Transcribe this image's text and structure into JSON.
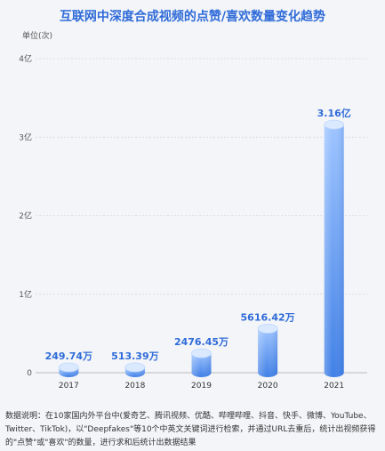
{
  "title": "互联网中深度合成视频的点赞/喜欢数量变化趋势",
  "footnote": "数据说明：在10家国内外平台中(爱奇艺、腾讯视频、优酷、哔哩哔哩、抖音、快手、微博、YouTube、Twitter、TikTok)，以\"Deepfakes\"等10个中英文关键词进行检索，并通过URL去重后，统计出视频获得的\"点赞\"或\"喜欢\"的数量，进行求和后统计出数据结果",
  "colors": {
    "title": "#2f6bd8",
    "bar_top": "#e6f0ff",
    "bar_light": "#a9ccff",
    "bar_dark": "#3f7fe6",
    "label": "#2f6bd8"
  },
  "chart_data": {
    "type": "bar",
    "categories": [
      "2017",
      "2018",
      "2019",
      "2020",
      "2021"
    ],
    "values": [
      2497400,
      5133900,
      24764500,
      56164200,
      316000000
    ],
    "data_labels": [
      "249.74万",
      "513.39万",
      "2476.45万",
      "5616.42万",
      "3.16亿"
    ],
    "ylabel": "单位(次)",
    "ylim": [
      0,
      400000000
    ],
    "yticks": [
      0,
      100000000,
      200000000,
      300000000,
      400000000
    ],
    "ytick_labels": [
      "0",
      "1亿",
      "2亿",
      "3亿",
      "4亿"
    ],
    "grid": true
  }
}
